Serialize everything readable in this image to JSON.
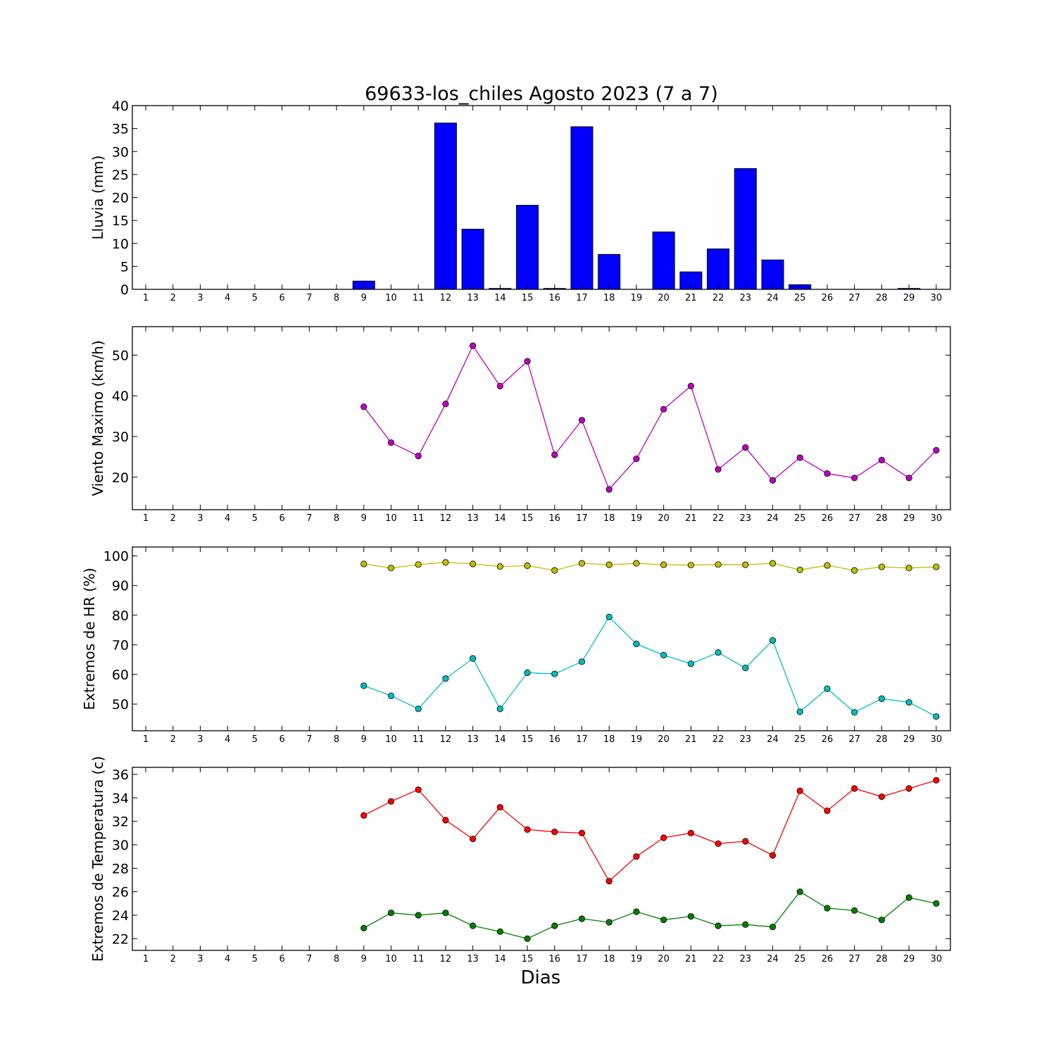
{
  "figure": {
    "title": "69633-los_chiles Agosto 2023  (7 a 7)",
    "xlabel": "Dias"
  },
  "chart_data": [
    {
      "type": "bar",
      "ylabel": "Lluvia (mm)",
      "categories": [
        "1",
        "2",
        "3",
        "4",
        "5",
        "6",
        "7",
        "8",
        "9",
        "10",
        "11",
        "12",
        "13",
        "14",
        "15",
        "16",
        "17",
        "18",
        "19",
        "20",
        "21",
        "22",
        "23",
        "24",
        "25",
        "26",
        "27",
        "28",
        "29",
        "30"
      ],
      "values": [
        null,
        null,
        null,
        null,
        null,
        null,
        null,
        null,
        1.8,
        0,
        0,
        36.2,
        13.1,
        0.2,
        18.3,
        0.2,
        35.4,
        7.6,
        0,
        12.5,
        3.8,
        8.8,
        26.3,
        6.4,
        1.0,
        0,
        0,
        0,
        0.2,
        0
      ],
      "ylim": [
        0,
        40
      ],
      "yticks": [
        0,
        5,
        10,
        15,
        20,
        25,
        30,
        35,
        40
      ],
      "color": "#0000ff"
    },
    {
      "type": "line",
      "ylabel": "Viento Maximo (km/h)",
      "x": [
        1,
        2,
        3,
        4,
        5,
        6,
        7,
        8,
        9,
        10,
        11,
        12,
        13,
        14,
        15,
        16,
        17,
        18,
        19,
        20,
        21,
        22,
        23,
        24,
        25,
        26,
        27,
        28,
        29,
        30
      ],
      "series": [
        {
          "color": "#bf00bf",
          "values": [
            null,
            null,
            null,
            null,
            null,
            null,
            null,
            null,
            37.3,
            28.5,
            25.2,
            38.0,
            52.3,
            42.4,
            48.5,
            25.5,
            34.0,
            17.0,
            24.5,
            36.7,
            42.4,
            21.9,
            27.3,
            19.2,
            24.8,
            20.9,
            19.8,
            24.2,
            19.8,
            26.6
          ]
        }
      ],
      "ylim": [
        12,
        57
      ],
      "yticks": [
        20,
        30,
        40,
        50
      ]
    },
    {
      "type": "line",
      "ylabel": "Extremos de HR (%)",
      "x": [
        1,
        2,
        3,
        4,
        5,
        6,
        7,
        8,
        9,
        10,
        11,
        12,
        13,
        14,
        15,
        16,
        17,
        18,
        19,
        20,
        21,
        22,
        23,
        24,
        25,
        26,
        27,
        28,
        29,
        30
      ],
      "series": [
        {
          "color": "#bfbf00",
          "values": [
            null,
            null,
            null,
            null,
            null,
            null,
            null,
            null,
            97.3,
            95.9,
            97.1,
            97.8,
            97.3,
            96.4,
            96.7,
            95.1,
            97.5,
            97.0,
            97.5,
            97.0,
            96.9,
            97.1,
            97.0,
            97.5,
            95.3,
            96.8,
            95.1,
            96.3,
            95.9,
            96.3
          ]
        },
        {
          "color": "#00bfbf",
          "values": [
            null,
            null,
            null,
            null,
            null,
            null,
            null,
            null,
            56.2,
            52.8,
            48.4,
            58.6,
            65.4,
            48.4,
            60.6,
            60.2,
            64.3,
            79.4,
            70.3,
            66.5,
            63.6,
            67.4,
            62.2,
            71.5,
            47.4,
            55.2,
            47.2,
            51.8,
            50.6,
            45.8
          ]
        }
      ],
      "ylim": [
        41,
        103
      ],
      "yticks": [
        50,
        60,
        70,
        80,
        90,
        100
      ]
    },
    {
      "type": "line",
      "ylabel": "Extremos de Temperatura (c)",
      "x": [
        1,
        2,
        3,
        4,
        5,
        6,
        7,
        8,
        9,
        10,
        11,
        12,
        13,
        14,
        15,
        16,
        17,
        18,
        19,
        20,
        21,
        22,
        23,
        24,
        25,
        26,
        27,
        28,
        29,
        30
      ],
      "series": [
        {
          "color": "#ff0000",
          "values": [
            null,
            null,
            null,
            null,
            null,
            null,
            null,
            null,
            32.5,
            33.7,
            34.7,
            32.1,
            30.5,
            33.2,
            31.3,
            31.1,
            31.0,
            26.9,
            29.0,
            30.6,
            31.0,
            30.1,
            30.3,
            29.1,
            34.6,
            32.9,
            34.8,
            34.1,
            34.8,
            35.5
          ]
        },
        {
          "color": "#008000",
          "values": [
            null,
            null,
            null,
            null,
            null,
            null,
            null,
            null,
            22.9,
            24.2,
            24.0,
            24.2,
            23.1,
            22.6,
            22.0,
            23.1,
            23.7,
            23.4,
            24.3,
            23.6,
            23.9,
            23.1,
            23.2,
            23.0,
            26.0,
            24.6,
            24.4,
            23.6,
            25.5,
            25.0
          ]
        }
      ],
      "ylim": [
        21,
        36.6
      ],
      "yticks": [
        22,
        24,
        26,
        28,
        30,
        32,
        34,
        36
      ]
    }
  ]
}
